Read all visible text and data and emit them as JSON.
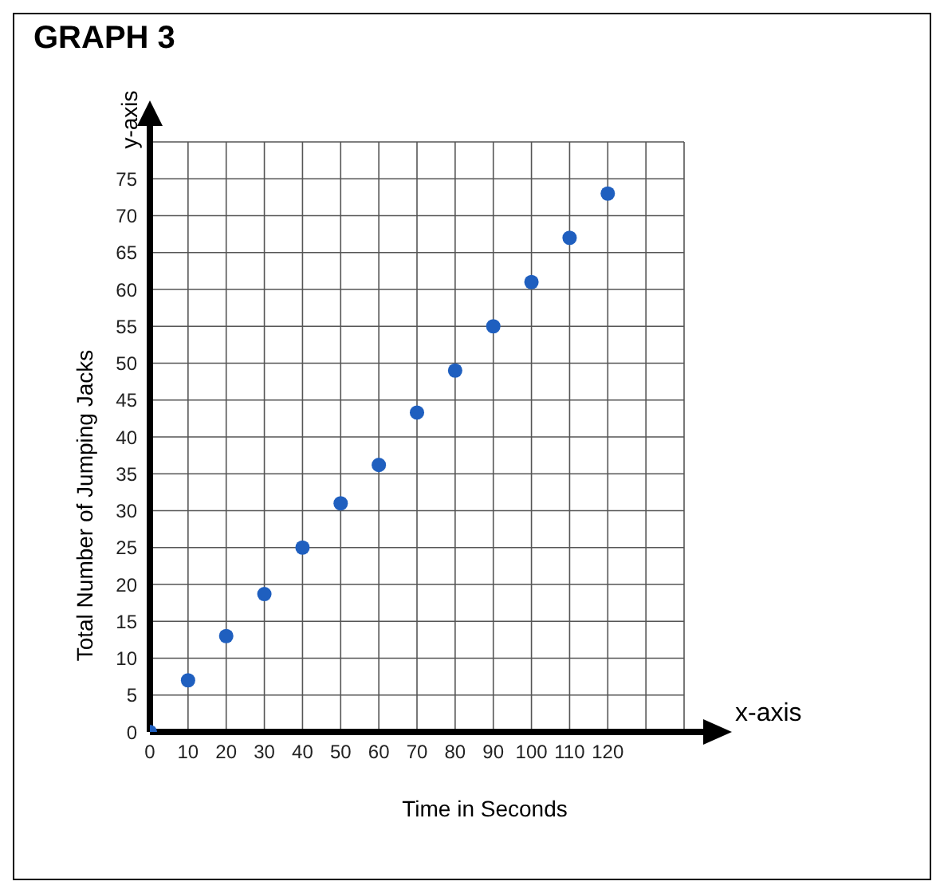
{
  "chart_data": {
    "type": "scatter",
    "title": "GRAPH 3",
    "xlabel": "Time in Seconds",
    "ylabel": "Total Number of Jumping Jacks",
    "annotations": [
      "x-axis",
      "y-axis"
    ],
    "x": [
      0,
      10,
      20,
      30,
      40,
      50,
      60,
      70,
      80,
      90,
      100,
      110,
      120
    ],
    "series": [
      {
        "color": "#1f5fbf",
        "values": [
          0,
          7,
          13,
          18.7,
          25,
          31,
          36.2,
          43.3,
          49,
          55,
          61,
          67,
          73
        ]
      }
    ],
    "xlim": [
      0,
      140
    ],
    "ylim": [
      0,
      80
    ],
    "xticks": [
      0,
      10,
      20,
      30,
      40,
      50,
      60,
      70,
      80,
      90,
      100,
      110,
      120,
      {
        "value": 130,
        "label": null
      },
      {
        "value": 140,
        "label": null
      }
    ],
    "yticks": [
      0,
      5,
      10,
      15,
      20,
      25,
      30,
      35,
      40,
      45,
      50,
      55,
      60,
      65,
      70,
      75,
      {
        "value": 80,
        "label": null
      }
    ],
    "grid": true,
    "marker": "circle"
  }
}
